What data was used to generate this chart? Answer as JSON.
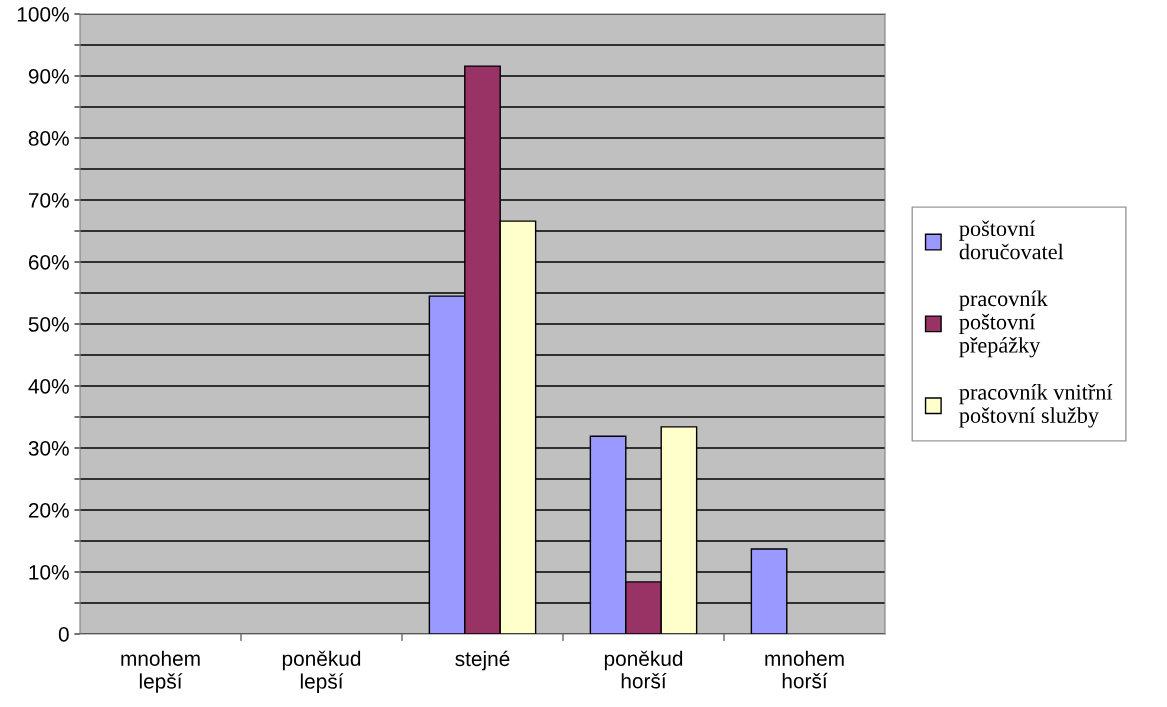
{
  "chart_data": {
    "type": "bar",
    "categories": [
      "mnohem\nlepší",
      "poněkud\nlepší",
      "stejné",
      "poněkud\nhorší",
      "mnohem\nhorší"
    ],
    "series": [
      {
        "name": "poštovní\ndoručovatel",
        "color": "#9999ff",
        "values": [
          null,
          null,
          54.5,
          31.9,
          13.7
        ]
      },
      {
        "name": "pracovník\npoštovní\npřepážky",
        "color": "#993366",
        "values": [
          null,
          null,
          91.6,
          8.4,
          null
        ]
      },
      {
        "name": "pracovník vnitřní\npoštovní služby",
        "color": "#ffffcc",
        "values": [
          null,
          null,
          66.6,
          33.4,
          null
        ]
      }
    ],
    "ylim": [
      0,
      100
    ],
    "yticks": [
      0,
      {
        "value": 5,
        "label": null
      },
      {
        "value": 10,
        "label": "10%"
      },
      {
        "value": 15,
        "label": null
      },
      {
        "value": 20,
        "label": "20%"
      },
      {
        "value": 25,
        "label": null
      },
      {
        "value": 30,
        "label": "30%"
      },
      {
        "value": 35,
        "label": null
      },
      {
        "value": 40,
        "label": "40%"
      },
      {
        "value": 45,
        "label": null
      },
      {
        "value": 50,
        "label": "50%"
      },
      {
        "value": 55,
        "label": null
      },
      {
        "value": 60,
        "label": "60%"
      },
      {
        "value": 65,
        "label": null
      },
      {
        "value": 70,
        "label": "70%"
      },
      {
        "value": 75,
        "label": null
      },
      {
        "value": 80,
        "label": "80%"
      },
      {
        "value": 85,
        "label": null
      },
      {
        "value": 90,
        "label": "90%"
      },
      {
        "value": 95,
        "label": null
      },
      {
        "value": 100,
        "label": "100%"
      }
    ],
    "grid": "y",
    "legend": "right"
  }
}
